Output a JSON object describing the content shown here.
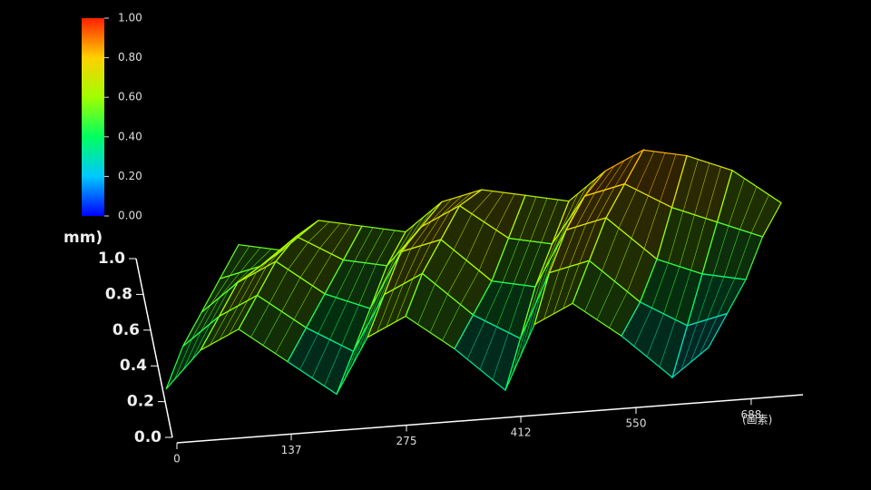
{
  "chart_data": {
    "type": "surface3d",
    "z_label": "mm)",
    "x_label": "(画素)",
    "x": [
      0,
      50,
      100,
      150,
      200,
      250,
      300,
      350,
      400,
      450,
      500,
      550,
      600,
      650
    ],
    "depth": [
      0,
      0.25,
      0.5,
      0.75,
      1
    ],
    "z": [
      [
        0.3,
        0.5,
        0.6,
        0.4,
        0.2,
        0.5,
        0.6,
        0.4,
        0.15,
        0.5,
        0.6,
        0.4,
        0.15,
        0.3
      ],
      [
        0.4,
        0.55,
        0.65,
        0.45,
        0.3,
        0.6,
        0.7,
        0.45,
        0.3,
        0.65,
        0.7,
        0.45,
        0.3,
        0.35
      ],
      [
        0.45,
        0.6,
        0.7,
        0.5,
        0.4,
        0.7,
        0.75,
        0.5,
        0.45,
        0.75,
        0.8,
        0.55,
        0.45,
        0.4
      ],
      [
        0.5,
        0.55,
        0.7,
        0.55,
        0.5,
        0.7,
        0.8,
        0.6,
        0.55,
        0.8,
        0.85,
        0.7,
        0.6,
        0.5
      ],
      [
        0.55,
        0.5,
        0.65,
        0.6,
        0.55,
        0.7,
        0.75,
        0.7,
        0.65,
        0.8,
        0.9,
        0.85,
        0.75,
        0.55
      ]
    ],
    "xlim": [
      0,
      750
    ],
    "xticks": [
      0,
      137,
      275,
      412,
      550,
      688
    ],
    "zlim": [
      0,
      1
    ],
    "zticks": [
      {
        "value": 0,
        "label": "0.0"
      },
      {
        "value": 0.2,
        "label": "0.2"
      },
      {
        "value": 0.4,
        "label": "0.4"
      },
      {
        "value": 0.6,
        "label": "0.6"
      },
      {
        "value": 0.8,
        "label": "0.8"
      },
      {
        "value": 1,
        "label": "1.0"
      }
    ],
    "colorscale": [
      "#0000ff",
      "#00c8ff",
      "#00ff60",
      "#a0ff00",
      "#ffd000",
      "#ff2000"
    ],
    "colorbar_lim": [
      0,
      1
    ],
    "colorbar_ticks": [
      {
        "value": 0,
        "label": "0.00"
      },
      {
        "value": 0.2,
        "label": "0.20"
      },
      {
        "value": 0.4,
        "label": "0.40"
      },
      {
        "value": 0.6,
        "label": "0.60"
      },
      {
        "value": 0.8,
        "label": "0.80"
      },
      {
        "value": 1,
        "label": "1.00"
      }
    ]
  }
}
